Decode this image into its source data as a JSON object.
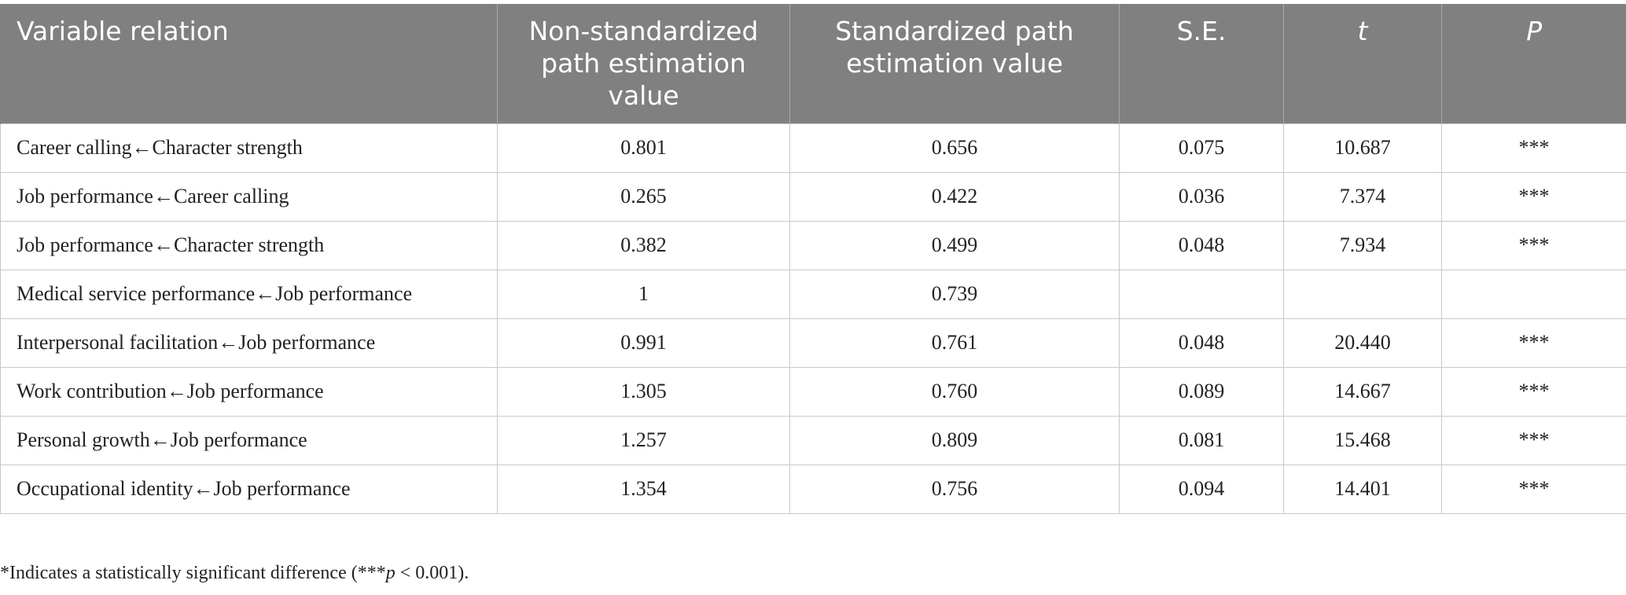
{
  "table": {
    "header": [
      "Variable relation",
      "Non-standardized path estimation value",
      "Standardized path estimation value",
      "S.E.",
      "t",
      "P"
    ],
    "rows": [
      [
        "Career calling←Character strength",
        "0.801",
        "0.656",
        "0.075",
        "10.687",
        "***"
      ],
      [
        "Job performance←Career calling",
        "0.265",
        "0.422",
        "0.036",
        "7.374",
        "***"
      ],
      [
        "Job performance←Character strength",
        "0.382",
        "0.499",
        "0.048",
        "7.934",
        "***"
      ],
      [
        "Medical service performance←Job performance",
        "1",
        "0.739",
        null,
        null,
        null
      ],
      [
        "Interpersonal facilitation←Job performance",
        "0.991",
        "0.761",
        "0.048",
        "20.440",
        "***"
      ],
      [
        "Work contribution←Job performance",
        "1.305",
        "0.760",
        "0.089",
        "14.667",
        "***"
      ],
      [
        "Personal growth←Job performance",
        "1.257",
        "0.809",
        "0.081",
        "15.468",
        "***"
      ],
      [
        "Occupational identity←Job performance",
        "1.354",
        "0.756",
        "0.094",
        "14.401",
        "***"
      ]
    ]
  },
  "footnote": {
    "before": "*Indicates a statistically significant difference (***",
    "italic": "p",
    "after": " < 0.001)."
  }
}
